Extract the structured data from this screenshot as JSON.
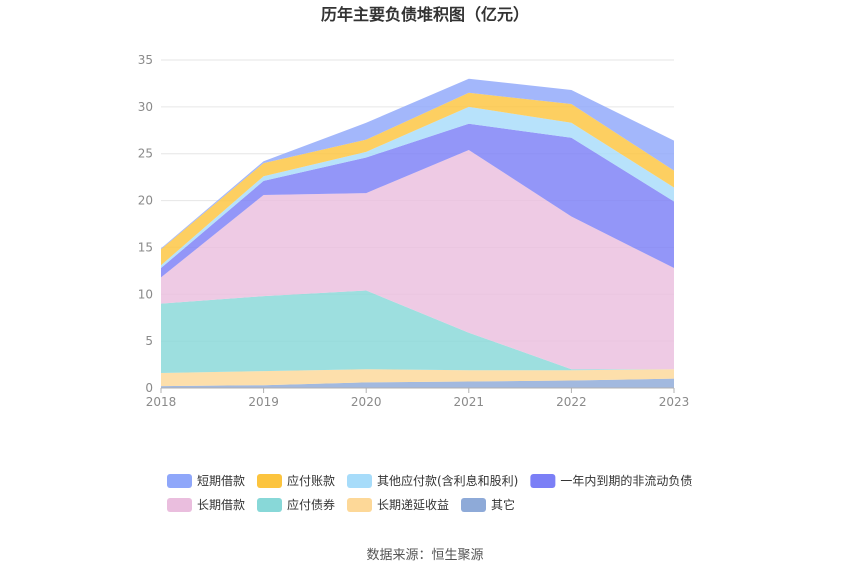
{
  "chart_data": {
    "type": "area",
    "stacked": true,
    "title": "历年主要负债堆积图（亿元）",
    "x": [
      "2018",
      "2019",
      "2020",
      "2021",
      "2022",
      "2023"
    ],
    "ylim": [
      0,
      35
    ],
    "yticks": [
      0,
      5,
      10,
      15,
      20,
      25,
      30,
      35
    ],
    "grid": true,
    "legend_position": "bottom",
    "series": [
      {
        "name": "其它",
        "color": "#8eaad8",
        "values": [
          0.2,
          0.3,
          0.6,
          0.7,
          0.8,
          1.0
        ]
      },
      {
        "name": "长期递延收益",
        "color": "#fdd898",
        "values": [
          1.4,
          1.5,
          1.4,
          1.2,
          1.1,
          1.0
        ]
      },
      {
        "name": "应付债券",
        "color": "#88d8d8",
        "values": [
          7.4,
          8.0,
          8.4,
          4.0,
          0.1,
          0.0
        ]
      },
      {
        "name": "长期借款",
        "color": "#eabede",
        "values": [
          2.8,
          10.8,
          10.4,
          19.5,
          16.3,
          10.8
        ]
      },
      {
        "name": "一年内到期的非流动负债",
        "color": "#7b7ff6",
        "values": [
          1.0,
          1.5,
          3.8,
          2.8,
          8.4,
          7.1
        ]
      },
      {
        "name": "其他应付款(含利息和股利)",
        "color": "#a7dcfa",
        "values": [
          0.3,
          0.5,
          0.6,
          1.8,
          1.6,
          1.5
        ]
      },
      {
        "name": "应付账款",
        "color": "#fcc43e",
        "values": [
          1.7,
          1.4,
          1.3,
          1.5,
          2.0,
          1.8
        ]
      },
      {
        "name": "短期借款",
        "color": "#8fa7fa",
        "values": [
          0.1,
          0.2,
          1.8,
          1.5,
          1.5,
          3.2
        ]
      }
    ],
    "legend_order": [
      "短期借款",
      "应付账款",
      "其他应付款(含利息和股利)",
      "一年内到期的非流动负债",
      "长期借款",
      "应付债券",
      "长期递延收益",
      "其它"
    ]
  },
  "source_text": "数据来源：恒生聚源"
}
